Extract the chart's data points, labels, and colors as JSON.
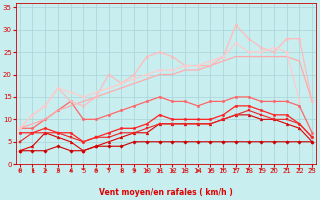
{
  "xlabel": "Vent moyen/en rafales ( km/h )",
  "background_color": "#c8eef0",
  "grid_color": "#a8d4d8",
  "x_values": [
    0,
    1,
    2,
    3,
    4,
    5,
    6,
    7,
    8,
    9,
    10,
    11,
    12,
    13,
    14,
    15,
    16,
    17,
    18,
    19,
    20,
    21,
    22,
    23
  ],
  "series": [
    {
      "color": "#cc0000",
      "linewidth": 0.8,
      "marker": "D",
      "markersize": 1.8,
      "values": [
        3,
        3,
        3,
        4,
        3,
        3,
        4,
        4,
        4,
        5,
        5,
        5,
        5,
        5,
        5,
        5,
        5,
        5,
        5,
        5,
        5,
        5,
        5,
        5
      ]
    },
    {
      "color": "#dd0000",
      "linewidth": 0.8,
      "marker": "^",
      "markersize": 2.0,
      "values": [
        3,
        4,
        7,
        6,
        5,
        3,
        4,
        5,
        6,
        7,
        7,
        9,
        9,
        9,
        9,
        9,
        10,
        11,
        11,
        10,
        10,
        9,
        8,
        5
      ]
    },
    {
      "color": "#ee2222",
      "linewidth": 0.8,
      "marker": "s",
      "markersize": 1.8,
      "values": [
        5,
        7,
        7,
        7,
        6,
        5,
        6,
        6,
        7,
        7,
        8,
        9,
        9,
        9,
        9,
        9,
        10,
        11,
        12,
        11,
        10,
        10,
        9,
        6
      ]
    },
    {
      "color": "#ff2222",
      "linewidth": 0.9,
      "marker": "o",
      "markersize": 1.8,
      "values": [
        7,
        7,
        8,
        7,
        7,
        5,
        6,
        7,
        8,
        8,
        9,
        11,
        10,
        10,
        10,
        10,
        11,
        13,
        13,
        12,
        11,
        11,
        9,
        6
      ]
    },
    {
      "color": "#ff6666",
      "linewidth": 0.9,
      "marker": "o",
      "markersize": 1.8,
      "values": [
        8,
        8,
        10,
        12,
        14,
        10,
        10,
        11,
        12,
        13,
        14,
        15,
        14,
        14,
        13,
        14,
        14,
        15,
        15,
        14,
        14,
        14,
        13,
        7
      ]
    },
    {
      "color": "#ffaaaa",
      "linewidth": 0.9,
      "marker": null,
      "markersize": 0,
      "values": [
        8,
        9,
        10,
        12,
        13,
        14,
        15,
        16,
        17,
        18,
        19,
        20,
        20,
        21,
        21,
        22,
        23,
        24,
        24,
        24,
        24,
        24,
        23,
        14
      ]
    },
    {
      "color": "#ffbbbb",
      "linewidth": 0.9,
      "marker": "o",
      "markersize": 1.8,
      "values": [
        8,
        11,
        13,
        17,
        14,
        13,
        15,
        20,
        18,
        20,
        24,
        25,
        24,
        22,
        22,
        22,
        24,
        31,
        28,
        26,
        25,
        28,
        28,
        14
      ]
    },
    {
      "color": "#ffcccc",
      "linewidth": 0.9,
      "marker": "o",
      "markersize": 1.8,
      "values": [
        8,
        11,
        13,
        17,
        16,
        15,
        16,
        17,
        18,
        19,
        20,
        21,
        21,
        22,
        22,
        23,
        24,
        27,
        25,
        25,
        26,
        25,
        14,
        null
      ]
    }
  ],
  "xlim": [
    -0.3,
    23.3
  ],
  "ylim": [
    0,
    36
  ],
  "yticks": [
    0,
    5,
    10,
    15,
    20,
    25,
    30,
    35
  ],
  "xticks": [
    0,
    1,
    2,
    3,
    4,
    5,
    6,
    7,
    8,
    9,
    10,
    11,
    12,
    13,
    14,
    15,
    16,
    17,
    18,
    19,
    20,
    21,
    22,
    23
  ],
  "xlabel_fontsize": 5.5,
  "tick_fontsize": 5.0,
  "arrow_up": [
    true,
    true,
    true,
    true,
    true,
    false,
    true,
    false,
    true,
    true,
    true,
    true,
    true,
    true,
    true,
    true,
    false,
    false,
    false,
    false,
    false,
    false,
    false,
    false
  ]
}
